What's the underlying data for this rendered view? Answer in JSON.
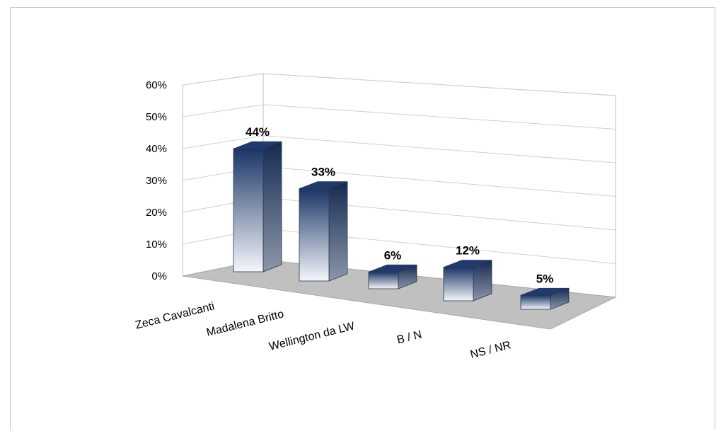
{
  "chart_data": {
    "type": "bar",
    "categories": [
      "Zeca Cavalcanti",
      "Madalena Britto",
      "Wellington da LW",
      "B / N",
      "NS / NR"
    ],
    "values": [
      44,
      33,
      6,
      12,
      5
    ],
    "data_labels": [
      "44%",
      "33%",
      "6%",
      "12%",
      "5%"
    ],
    "title": "",
    "xlabel": "",
    "ylabel": "",
    "ylim": [
      0,
      60
    ],
    "yticks": [
      0,
      10,
      20,
      30,
      40,
      50,
      60
    ],
    "ytick_labels": [
      "0%",
      "10%",
      "20%",
      "30%",
      "40%",
      "50%",
      "60%"
    ],
    "grid": true,
    "legend": "none",
    "style": "3d-column",
    "colors": {
      "bar_top": "#1b3566",
      "bar_bottom": "#f4f6fa",
      "floor": "#c0c0c0",
      "grid": "#d0d0d0"
    }
  }
}
